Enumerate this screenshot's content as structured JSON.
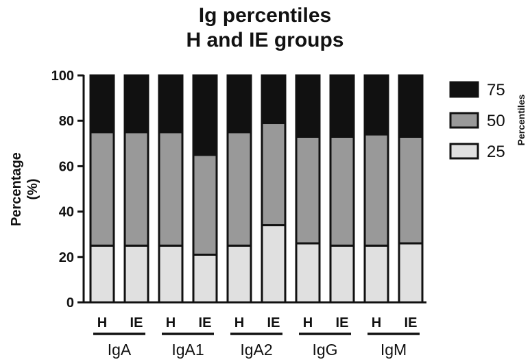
{
  "chart_data": {
    "type": "bar",
    "stacked": true,
    "title": [
      "Ig percentiles",
      "H and IE groups"
    ],
    "ylabel": [
      "Percentage",
      "(%)"
    ],
    "ylim": [
      0,
      100
    ],
    "yticks": [
      0,
      20,
      40,
      60,
      80,
      100
    ],
    "categories": [
      "H",
      "IE",
      "H",
      "IE",
      "H",
      "IE",
      "H",
      "IE",
      "H",
      "IE"
    ],
    "groups": [
      "IgA",
      "IgA1",
      "IgA2",
      "IgG",
      "IgM"
    ],
    "legend_title": "Percentiles",
    "legend_position": "right",
    "series": [
      {
        "name": "25",
        "color": "#e0e0e0",
        "values": [
          25,
          25,
          25,
          21,
          25,
          34,
          26,
          25,
          25,
          26
        ]
      },
      {
        "name": "50",
        "color": "#999999",
        "values": [
          50,
          50,
          50,
          44,
          50,
          45,
          47,
          48,
          49,
          47
        ]
      },
      {
        "name": "75",
        "color": "#111111",
        "values": [
          25,
          25,
          25,
          35,
          25,
          21,
          27,
          27,
          26,
          27
        ]
      }
    ]
  }
}
